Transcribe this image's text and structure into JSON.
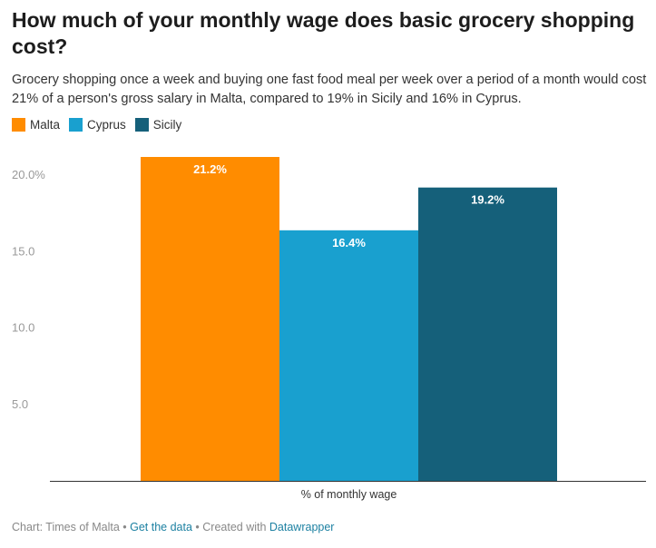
{
  "title": "How much of your monthly wage does basic grocery shopping cost?",
  "subtitle": "Grocery shopping once a week and buying one fast food meal per week over a period of a month would cost 21% of a person's gross salary in Malta, compared to 19% in Sicily and 16% in Cyprus.",
  "footer": {
    "prefix": "Chart: Times of Malta",
    "sep1": " • ",
    "data_link": "Get the data",
    "sep2": " • Created with ",
    "tool_link": "Datawrapper"
  },
  "chart_data": {
    "type": "bar",
    "categories": [
      "% of monthly wage"
    ],
    "series": [
      {
        "name": "Malta",
        "values": [
          21.2
        ],
        "label": "21.2%",
        "color": "#ff8c00"
      },
      {
        "name": "Cyprus",
        "values": [
          16.4
        ],
        "label": "16.4%",
        "color": "#19a0cf"
      },
      {
        "name": "Sicily",
        "values": [
          19.2
        ],
        "label": "19.2%",
        "color": "#15607a"
      }
    ],
    "yticks": [
      {
        "value": 5,
        "label": "5.0"
      },
      {
        "value": 10,
        "label": "10.0"
      },
      {
        "value": 15,
        "label": "15.0"
      },
      {
        "value": 20,
        "label": "20.0%"
      }
    ],
    "ylim": [
      0,
      21.2
    ],
    "grid": false,
    "legend_position": "top-left"
  }
}
